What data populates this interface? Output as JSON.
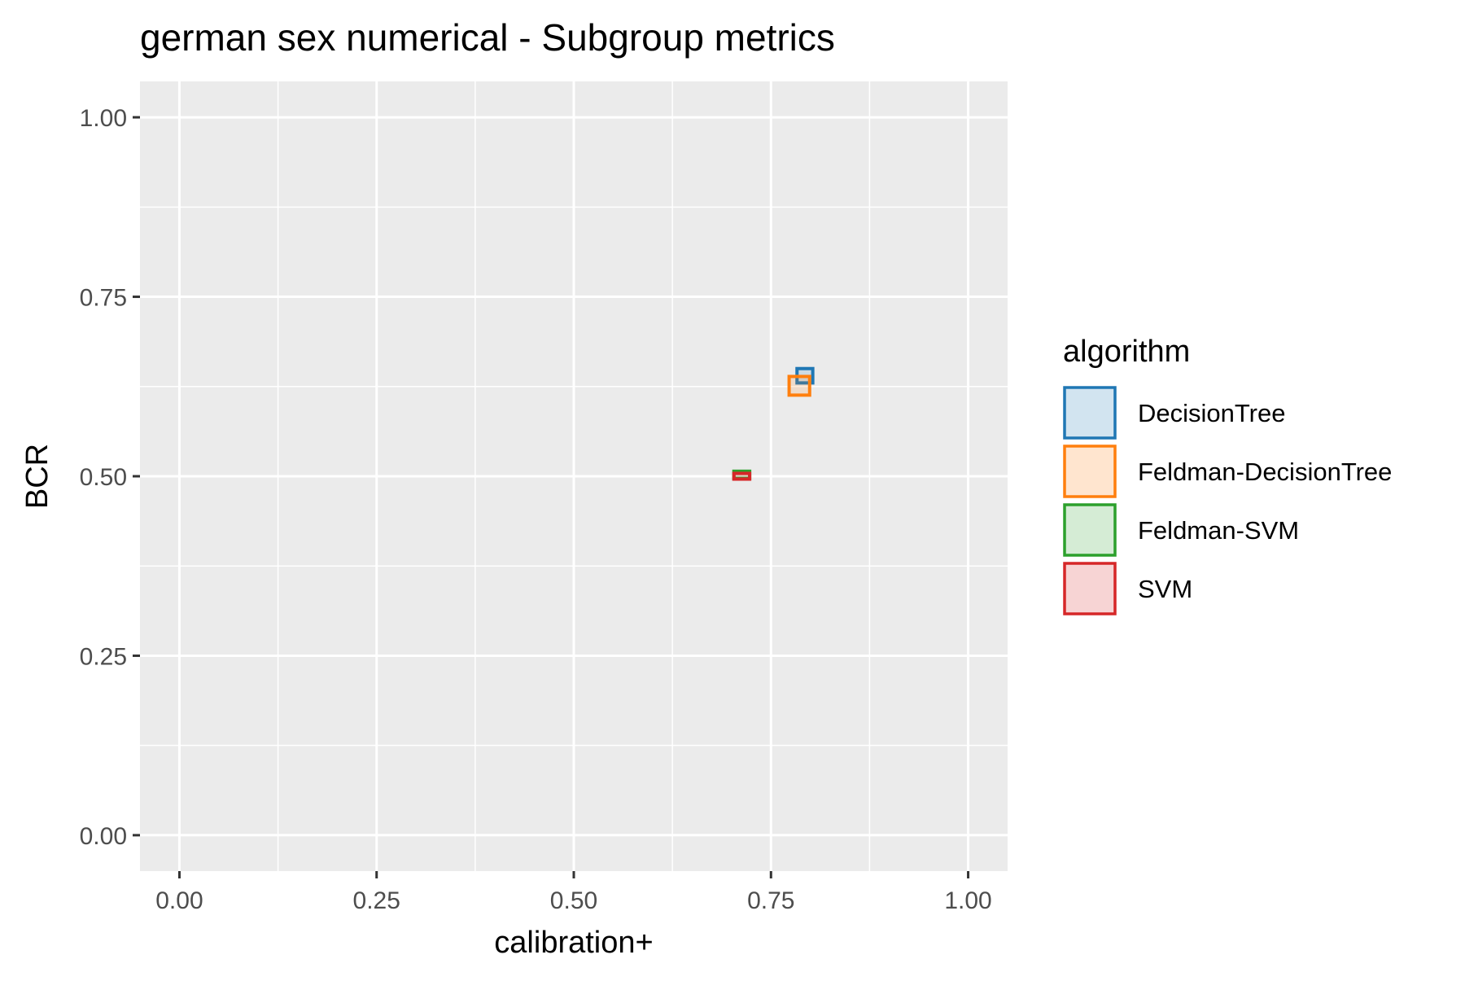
{
  "chart_data": {
    "type": "scatter",
    "title": "german sex numerical - Subgroup metrics",
    "xlabel": "calibration+",
    "ylabel": "BCR",
    "xlim": [
      -0.05,
      1.05
    ],
    "ylim": [
      -0.05,
      1.05
    ],
    "x_ticks": [
      0.0,
      0.25,
      0.5,
      0.75,
      1.0
    ],
    "x_tick_labels": [
      "0.00",
      "0.25",
      "0.50",
      "0.75",
      "1.00"
    ],
    "y_ticks": [
      0.0,
      0.25,
      0.5,
      0.75,
      1.0
    ],
    "y_tick_labels": [
      "0.00",
      "0.25",
      "0.50",
      "0.75",
      "1.00"
    ],
    "grid": true,
    "legend_position": "right",
    "legend_title": "algorithm",
    "panel_background": "#ebebeb",
    "series": [
      {
        "name": "DecisionTree",
        "color": "#1f77b4",
        "points": [
          {
            "x": 0.793,
            "y": 0.64,
            "x_half_width": 0.01,
            "y_half_width": 0.01
          }
        ]
      },
      {
        "name": "Feldman-DecisionTree",
        "color": "#ff7f0e",
        "points": [
          {
            "x": 0.786,
            "y": 0.626,
            "x_half_width": 0.013,
            "y_half_width": 0.013
          }
        ]
      },
      {
        "name": "Feldman-SVM",
        "color": "#2ca02c",
        "points": [
          {
            "x": 0.713,
            "y": 0.502,
            "x_half_width": 0.01,
            "y_half_width": 0.005
          }
        ]
      },
      {
        "name": "SVM",
        "color": "#d62728",
        "points": [
          {
            "x": 0.713,
            "y": 0.5,
            "x_half_width": 0.01,
            "y_half_width": 0.004
          }
        ]
      }
    ]
  }
}
